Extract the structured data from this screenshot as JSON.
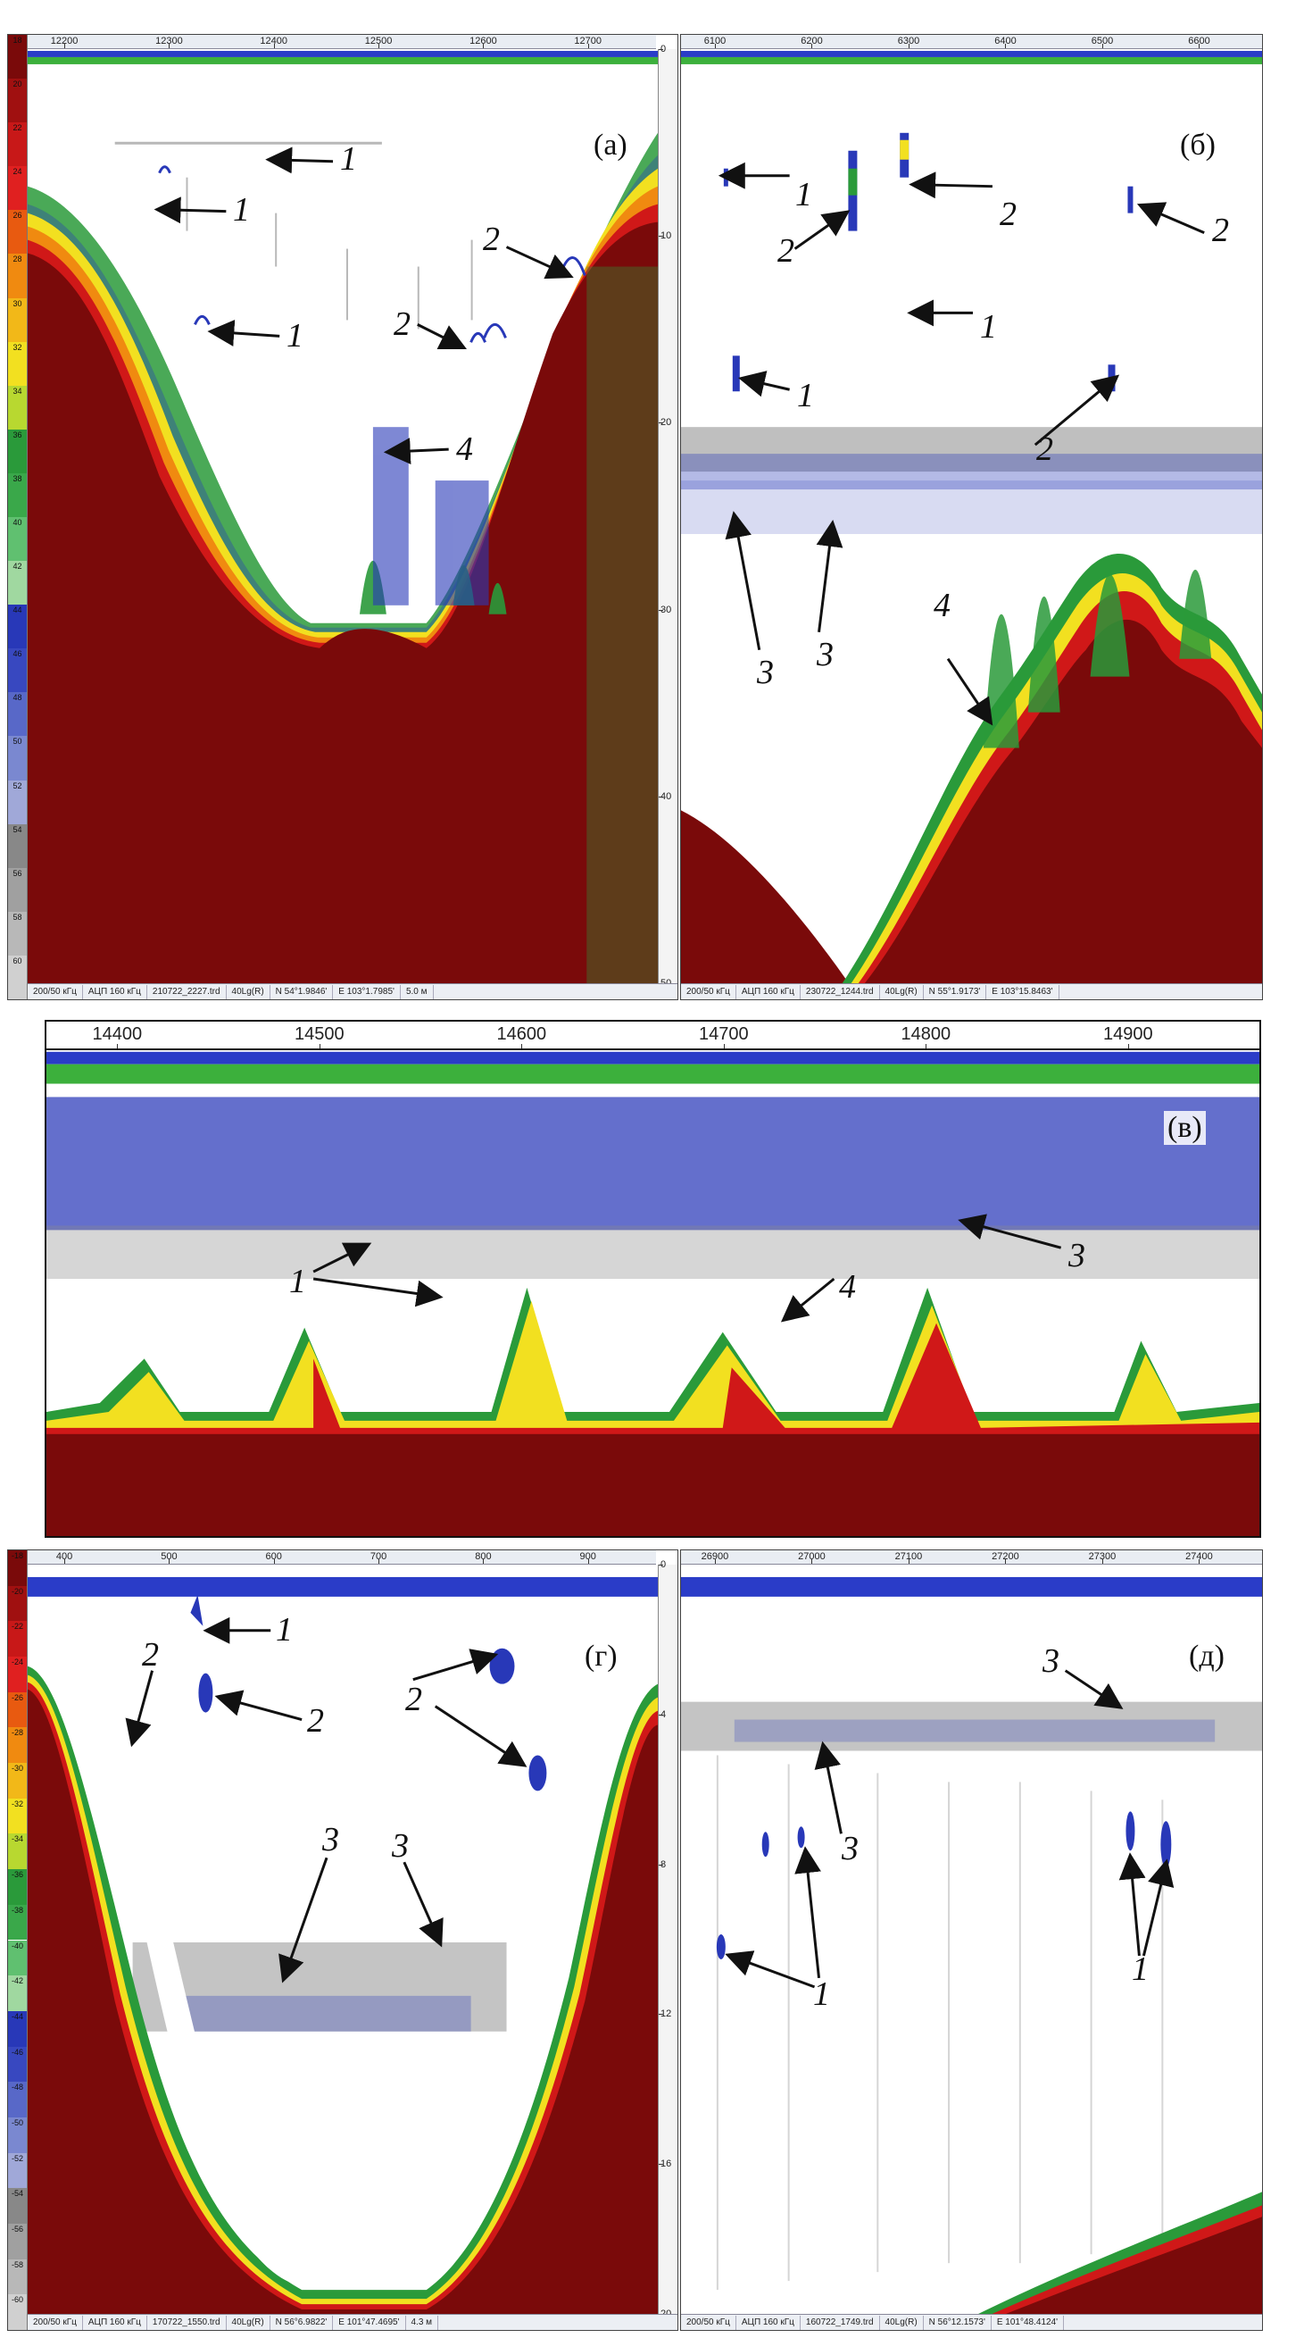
{
  "panels": {
    "a": {
      "letter": "(а)",
      "ruler_ticks": [
        "12200",
        "12300",
        "12400",
        "12500",
        "12600",
        "12700"
      ],
      "depth_ticks": [
        "0",
        "10",
        "20",
        "30",
        "40",
        "50"
      ],
      "status": [
        "200/50 кГц",
        "АЦП 160 кГц",
        "210722_2227.trd",
        "40Lg(R)",
        "N 54°1.9846'",
        "E 103°1.7985'",
        "5.0 м"
      ],
      "labels": [
        "1",
        "1",
        "1",
        "2",
        "2",
        "4"
      ]
    },
    "b": {
      "letter": "(б)",
      "ruler_ticks": [
        "6100",
        "6200",
        "6300",
        "6400",
        "6500",
        "6600"
      ],
      "status": [
        "200/50 кГц",
        "АЦП 160 кГц",
        "230722_1244.trd",
        "40Lg(R)",
        "N 55°1.9173'",
        "E 103°15.8463'"
      ],
      "labels": [
        "1",
        "2",
        "2",
        "2",
        "1",
        "1",
        "2",
        "3",
        "3",
        "4"
      ]
    },
    "v": {
      "letter": "(в)",
      "ruler_ticks": [
        "14400",
        "14500",
        "14600",
        "14700",
        "14800",
        "14900"
      ],
      "labels": [
        "1",
        "4",
        "3"
      ]
    },
    "g": {
      "letter": "(г)",
      "ruler_ticks": [
        "400",
        "500",
        "600",
        "700",
        "800",
        "900"
      ],
      "depth_ticks": [
        "0",
        "4",
        "8",
        "12",
        "16",
        "20"
      ],
      "status": [
        "200/50 кГц",
        "АЦП 160 кГц",
        "170722_1550.trd",
        "40Lg(R)",
        "N 56°6.9822'",
        "E 101°47.4695'",
        "4.3 м"
      ],
      "labels": [
        "2",
        "1",
        "2",
        "2",
        "3",
        "3"
      ]
    },
    "d": {
      "letter": "(д)",
      "ruler_ticks": [
        "26900",
        "27000",
        "27100",
        "27200",
        "27300",
        "27400"
      ],
      "status": [
        "200/50 кГц",
        "АЦП 160 кГц",
        "160722_1749.trd",
        "40Lg(R)",
        "N 56°12.1573'",
        "E 101°48.4124'"
      ],
      "labels": [
        "3",
        "3",
        "1",
        "1"
      ]
    }
  },
  "color_scale_a": [
    "18",
    "20",
    "22",
    "24",
    "26",
    "28",
    "30",
    "32",
    "34",
    "36",
    "38",
    "40",
    "42",
    "44",
    "46",
    "48",
    "50",
    "52",
    "54",
    "56",
    "58",
    "60"
  ],
  "color_scale_g": [
    "-18",
    "-20",
    "-22",
    "-24",
    "-26",
    "-28",
    "-30",
    "-32",
    "-34",
    "-36",
    "-38",
    "-40",
    "-42",
    "-44",
    "-46",
    "-48",
    "-50",
    "-52",
    "-54",
    "-56",
    "-58",
    "-60"
  ],
  "colors": {
    "bottom": "#7a0a0a",
    "red": "#d01818",
    "orange": "#f08a10",
    "yellow": "#f2e020",
    "green": "#2a9a3a",
    "blue": "#2838b8",
    "grey": "#8a8a8a",
    "surface_green": "#3cb03c",
    "surface_blue": "#2a3cc8"
  }
}
